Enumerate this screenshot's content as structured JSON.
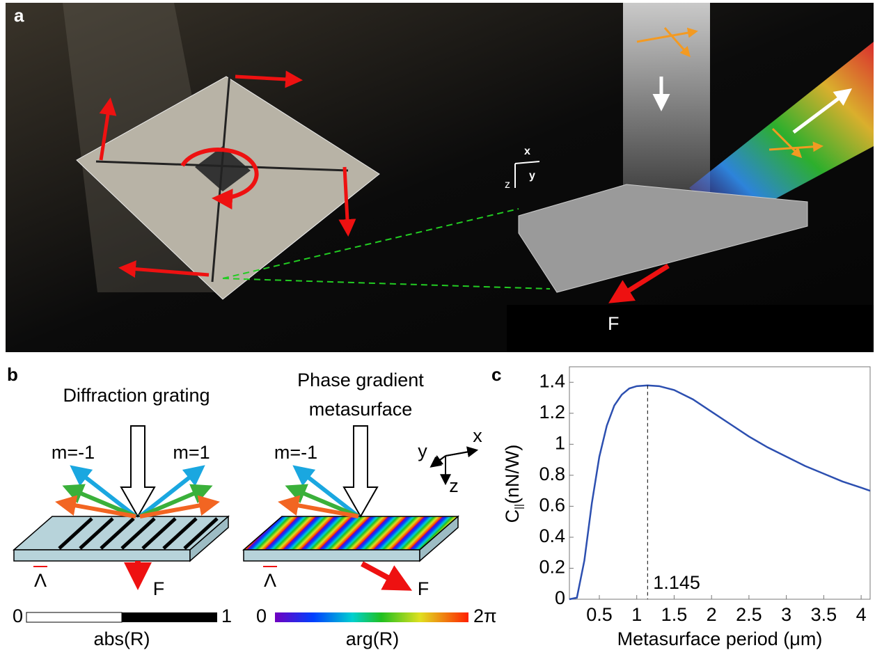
{
  "panel_a": {
    "label": "a",
    "axis_x": "x",
    "axis_y": "y",
    "axis_z": "z",
    "force": "F"
  },
  "panel_b": {
    "label": "b",
    "grating": {
      "title": "Diffraction grating",
      "order_minus": "m=-1",
      "order_plus": "m=1",
      "period": "Λ",
      "force": "F",
      "bar_min": "0",
      "bar_max": "1",
      "bar_label": "abs(R)"
    },
    "metasurface": {
      "title_1": "Phase gradient",
      "title_2": "metasurface",
      "order_minus": "m=-1",
      "period": "Λ",
      "force": "F",
      "bar_min": "0",
      "bar_max": "2π",
      "bar_label": "arg(R)"
    },
    "axes": {
      "x": "x",
      "y": "y",
      "z": "z"
    }
  },
  "chart_data": {
    "type": "line",
    "panel_label": "c",
    "x_label": "Metasurface period (μm)",
    "y_label": "C",
    "y_label_sub": "||",
    "y_label_unit": "(nN/W)",
    "x": [
      0.1,
      0.2,
      0.3,
      0.4,
      0.5,
      0.6,
      0.7,
      0.8,
      0.9,
      1.0,
      1.145,
      1.3,
      1.5,
      1.75,
      2,
      2.25,
      2.5,
      2.75,
      3,
      3.25,
      3.5,
      3.75,
      4,
      4.12
    ],
    "series": [
      {
        "color": "#2c4fb0",
        "values": [
          0,
          0.01,
          0.25,
          0.62,
          0.92,
          1.12,
          1.25,
          1.32,
          1.36,
          1.375,
          1.38,
          1.375,
          1.35,
          1.29,
          1.21,
          1.13,
          1.05,
          0.98,
          0.92,
          0.86,
          0.81,
          0.76,
          0.72,
          0.7
        ]
      }
    ],
    "xlim": [
      0.1,
      4.12
    ],
    "ylim": [
      0,
      1.5
    ],
    "xticks": [
      0.5,
      1,
      1.5,
      2,
      2.5,
      3,
      3.5,
      4
    ],
    "yticks": [
      0,
      0.2,
      0.4,
      0.6,
      0.8,
      1,
      1.2,
      1.4
    ],
    "annotation": {
      "x": 1.145
    }
  }
}
